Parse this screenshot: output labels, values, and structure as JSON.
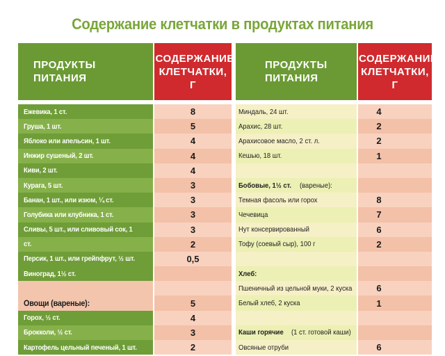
{
  "title": "Содержание клетчатки в продуктах питания",
  "headers": {
    "products_1": "ПРОДУКТЫ ПИТАНИЯ",
    "fiber_1": "СОДЕРЖАНИЕ КЛЕТЧАТКИ, г",
    "products_2": "ПРОДУКТЫ ПИТАНИЯ",
    "fiber_2": "СОДЕРЖАНИЕ КЛЕТЧАТКИ, г"
  },
  "left": [
    {
      "name": "Ежевика, 1 ст.",
      "value": "8"
    },
    {
      "name": "Груша, 1 шт.",
      "value": "5"
    },
    {
      "name": "Яблоко или апельсин, 1 шт.",
      "value": "4"
    },
    {
      "name": "Инжир сушеный, 2 шт.",
      "value": "4"
    },
    {
      "name": "Киви, 2 шт.",
      "value": "4"
    },
    {
      "name": "Курага, 5 шт.",
      "value": "3"
    },
    {
      "name": "Банан, 1 шт., или изюм, ¼ ст.",
      "value": "3"
    },
    {
      "name": "Голубика или клубника, 1 ст.",
      "value": "3"
    },
    {
      "name": "Сливы, 5 шт., или сливовый сок, 1",
      "value": "3"
    },
    {
      "name": "ст.",
      "value": "2"
    },
    {
      "name": "Персик, 1 шт., или грейпфрут, ½ шт.",
      "value": "0,5"
    },
    {
      "name": "Виноград, 1½ ст.",
      "value": ""
    },
    {
      "name": "",
      "value": ""
    },
    {
      "name": "Овощи (вареные):",
      "value": "5"
    },
    {
      "name": "Горох, ½ ст.",
      "value": "4"
    },
    {
      "name": "Брокколи, ½ ст.",
      "value": "3"
    },
    {
      "name": "Картофель цельный печеный, 1 шт.",
      "value": "2"
    }
  ],
  "right": [
    {
      "name": "Миндаль, 24 шт.",
      "value": "4"
    },
    {
      "name": "Арахис, 28 шт.",
      "value": "2"
    },
    {
      "name": "Арахисовое масло, 2 ст. л.",
      "value": "2"
    },
    {
      "name": "Кешью, 18 шт.",
      "value": "1"
    },
    {
      "name": "",
      "value": ""
    },
    {
      "name": "Бобовые, 1½ ст.",
      "note": "(вареные):",
      "value": ""
    },
    {
      "name": "Темная фасоль или горох",
      "value": "8"
    },
    {
      "name": "Чечевица",
      "value": "7"
    },
    {
      "name": "Нут консервированный",
      "value": "6"
    },
    {
      "name": "Тофу (соевый сыр), 100 г",
      "value": "2"
    },
    {
      "name": "",
      "value": ""
    },
    {
      "name": "Хлеб:",
      "value": ""
    },
    {
      "name": "Пшеничный из цельной муки, 2 куска",
      "value": "6"
    },
    {
      "name": "Белый хлеб, 2 куска",
      "value": "1"
    },
    {
      "name": "",
      "value": ""
    },
    {
      "name": "Каши горячие",
      "note": "(1 ст. готовой каши)",
      "value": ""
    },
    {
      "name": "Овсяные отруби",
      "value": "6"
    }
  ],
  "colors": {
    "title_green": "#7aa63a",
    "header_green": "#6b9a35",
    "header_red": "#d02a2e",
    "row_green": "#6f9d38",
    "row_pink": "#f3c5ad",
    "row_yellow": "#f6f0c6"
  }
}
